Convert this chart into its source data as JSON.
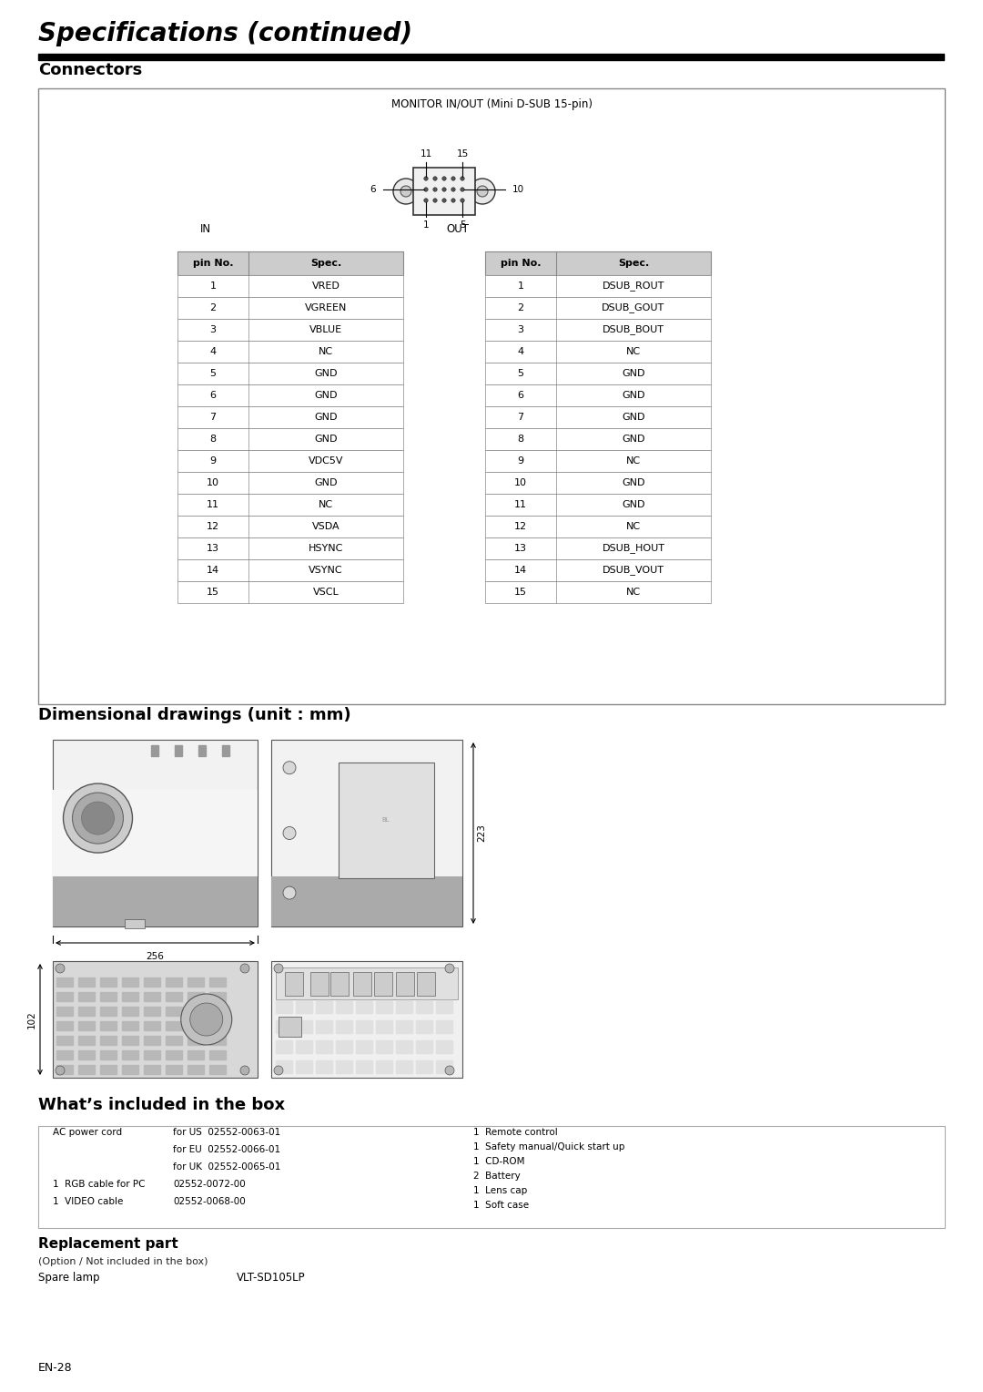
{
  "title": "Specifications (continued)",
  "section1_title": "Connectors",
  "connector_label": "MONITOR IN/OUT (Mini D-SUB 15-pin)",
  "in_label": "IN",
  "out_label": "OUT",
  "in_pins": [
    [
      "1",
      "VRED"
    ],
    [
      "2",
      "VGREEN"
    ],
    [
      "3",
      "VBLUE"
    ],
    [
      "4",
      "NC"
    ],
    [
      "5",
      "GND"
    ],
    [
      "6",
      "GND"
    ],
    [
      "7",
      "GND"
    ],
    [
      "8",
      "GND"
    ],
    [
      "9",
      "VDC5V"
    ],
    [
      "10",
      "GND"
    ],
    [
      "11",
      "NC"
    ],
    [
      "12",
      "VSDA"
    ],
    [
      "13",
      "HSYNC"
    ],
    [
      "14",
      "VSYNC"
    ],
    [
      "15",
      "VSCL"
    ]
  ],
  "out_pins": [
    [
      "1",
      "DSUB_ROUT"
    ],
    [
      "2",
      "DSUB_GOUT"
    ],
    [
      "3",
      "DSUB_BOUT"
    ],
    [
      "4",
      "NC"
    ],
    [
      "5",
      "GND"
    ],
    [
      "6",
      "GND"
    ],
    [
      "7",
      "GND"
    ],
    [
      "8",
      "GND"
    ],
    [
      "9",
      "NC"
    ],
    [
      "10",
      "GND"
    ],
    [
      "11",
      "GND"
    ],
    [
      "12",
      "NC"
    ],
    [
      "13",
      "DSUB_HOUT"
    ],
    [
      "14",
      "DSUB_VOUT"
    ],
    [
      "15",
      "NC"
    ]
  ],
  "section2_title": "Dimensional drawings (unit : mm)",
  "dim_256": "256",
  "dim_223": "223",
  "dim_102": "102",
  "section3_title": "What’s included in the box",
  "box_left_lines": [
    [
      "AC power cord",
      "for US  02552-0063-01"
    ],
    [
      "",
      "for EU  02552-0066-01"
    ],
    [
      "",
      "for UK  02552-0065-01"
    ],
    [
      "1  RGB cable for PC",
      "02552-0072-00"
    ],
    [
      "1  VIDEO cable",
      "02552-0068-00"
    ]
  ],
  "box_right_lines": [
    "1  Remote control",
    "1  Safety manual/Quick start up",
    "1  CD-ROM",
    "2  Battery",
    "1  Lens cap",
    "1  Soft case"
  ],
  "section4_title": "Replacement part",
  "replacement_note": "(Option / Not included in the box)",
  "spare_lamp_label": "Spare lamp",
  "spare_lamp_value": "VLT-SD105LP",
  "footer": "EN-28",
  "bg_color": "#ffffff",
  "table_header_bg": "#cccccc",
  "table_border": "#888888",
  "box_border": "#aaaaaa"
}
